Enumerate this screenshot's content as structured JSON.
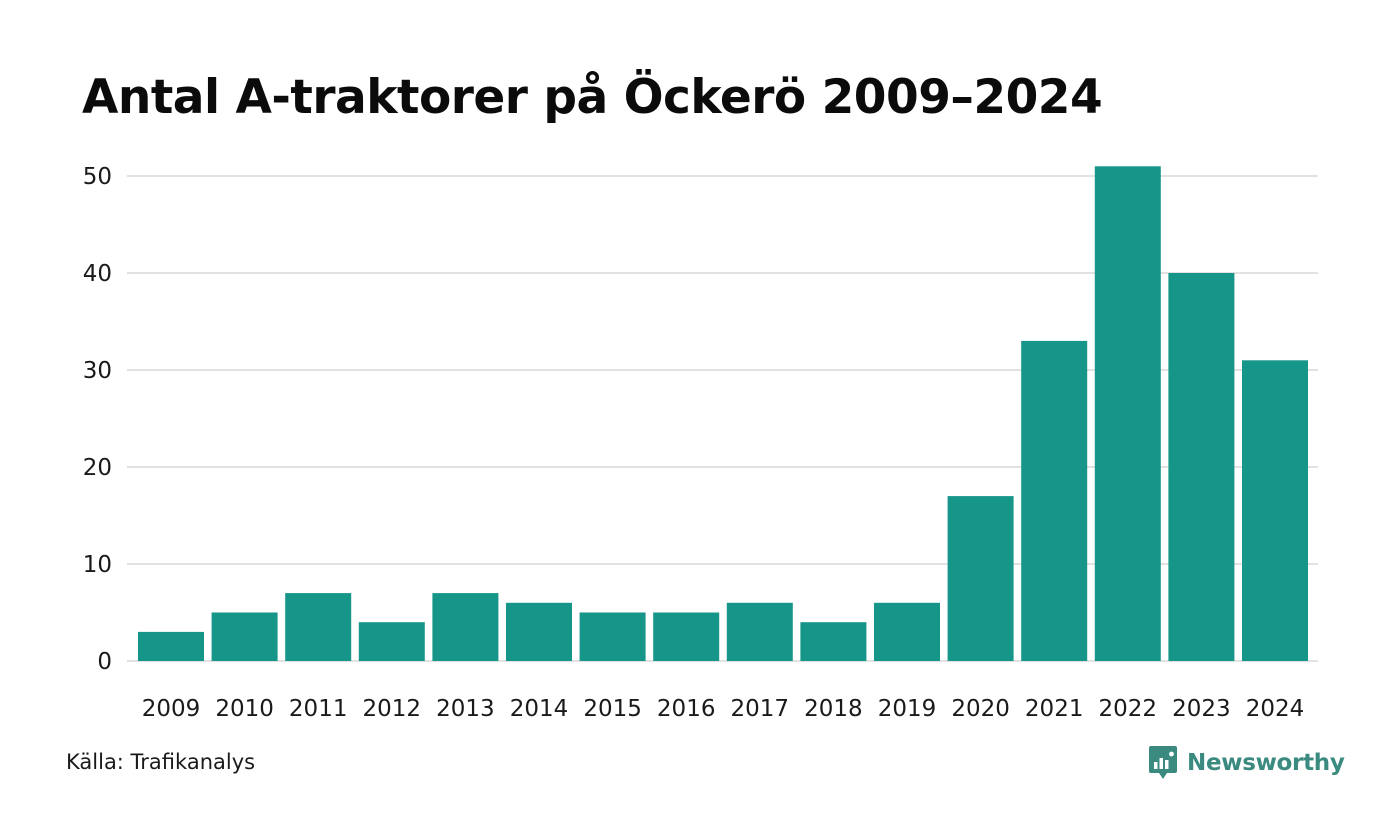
{
  "chart_data": {
    "type": "bar",
    "title": "Antal A-traktorer på Öckerö 2009–2024",
    "xlabel": "",
    "ylabel": "",
    "categories": [
      "2009",
      "2010",
      "2011",
      "2012",
      "2013",
      "2014",
      "2015",
      "2016",
      "2017",
      "2018",
      "2019",
      "2020",
      "2021",
      "2022",
      "2023",
      "2024"
    ],
    "values": [
      3,
      5,
      7,
      4,
      7,
      6,
      5,
      5,
      6,
      4,
      6,
      17,
      33,
      51,
      40,
      31
    ],
    "ylim": [
      0,
      52
    ],
    "yticks": [
      0,
      10,
      20,
      30,
      40,
      50
    ],
    "grid": true,
    "legend": "none",
    "bar_color": "#159688",
    "grid_color": "#e2e2e2"
  },
  "footer": {
    "source": "Källa: Trafikanalys",
    "brand": "Newsworthy",
    "brand_icon": "newsworthy-logo-icon",
    "brand_color": "#3a8a80"
  }
}
